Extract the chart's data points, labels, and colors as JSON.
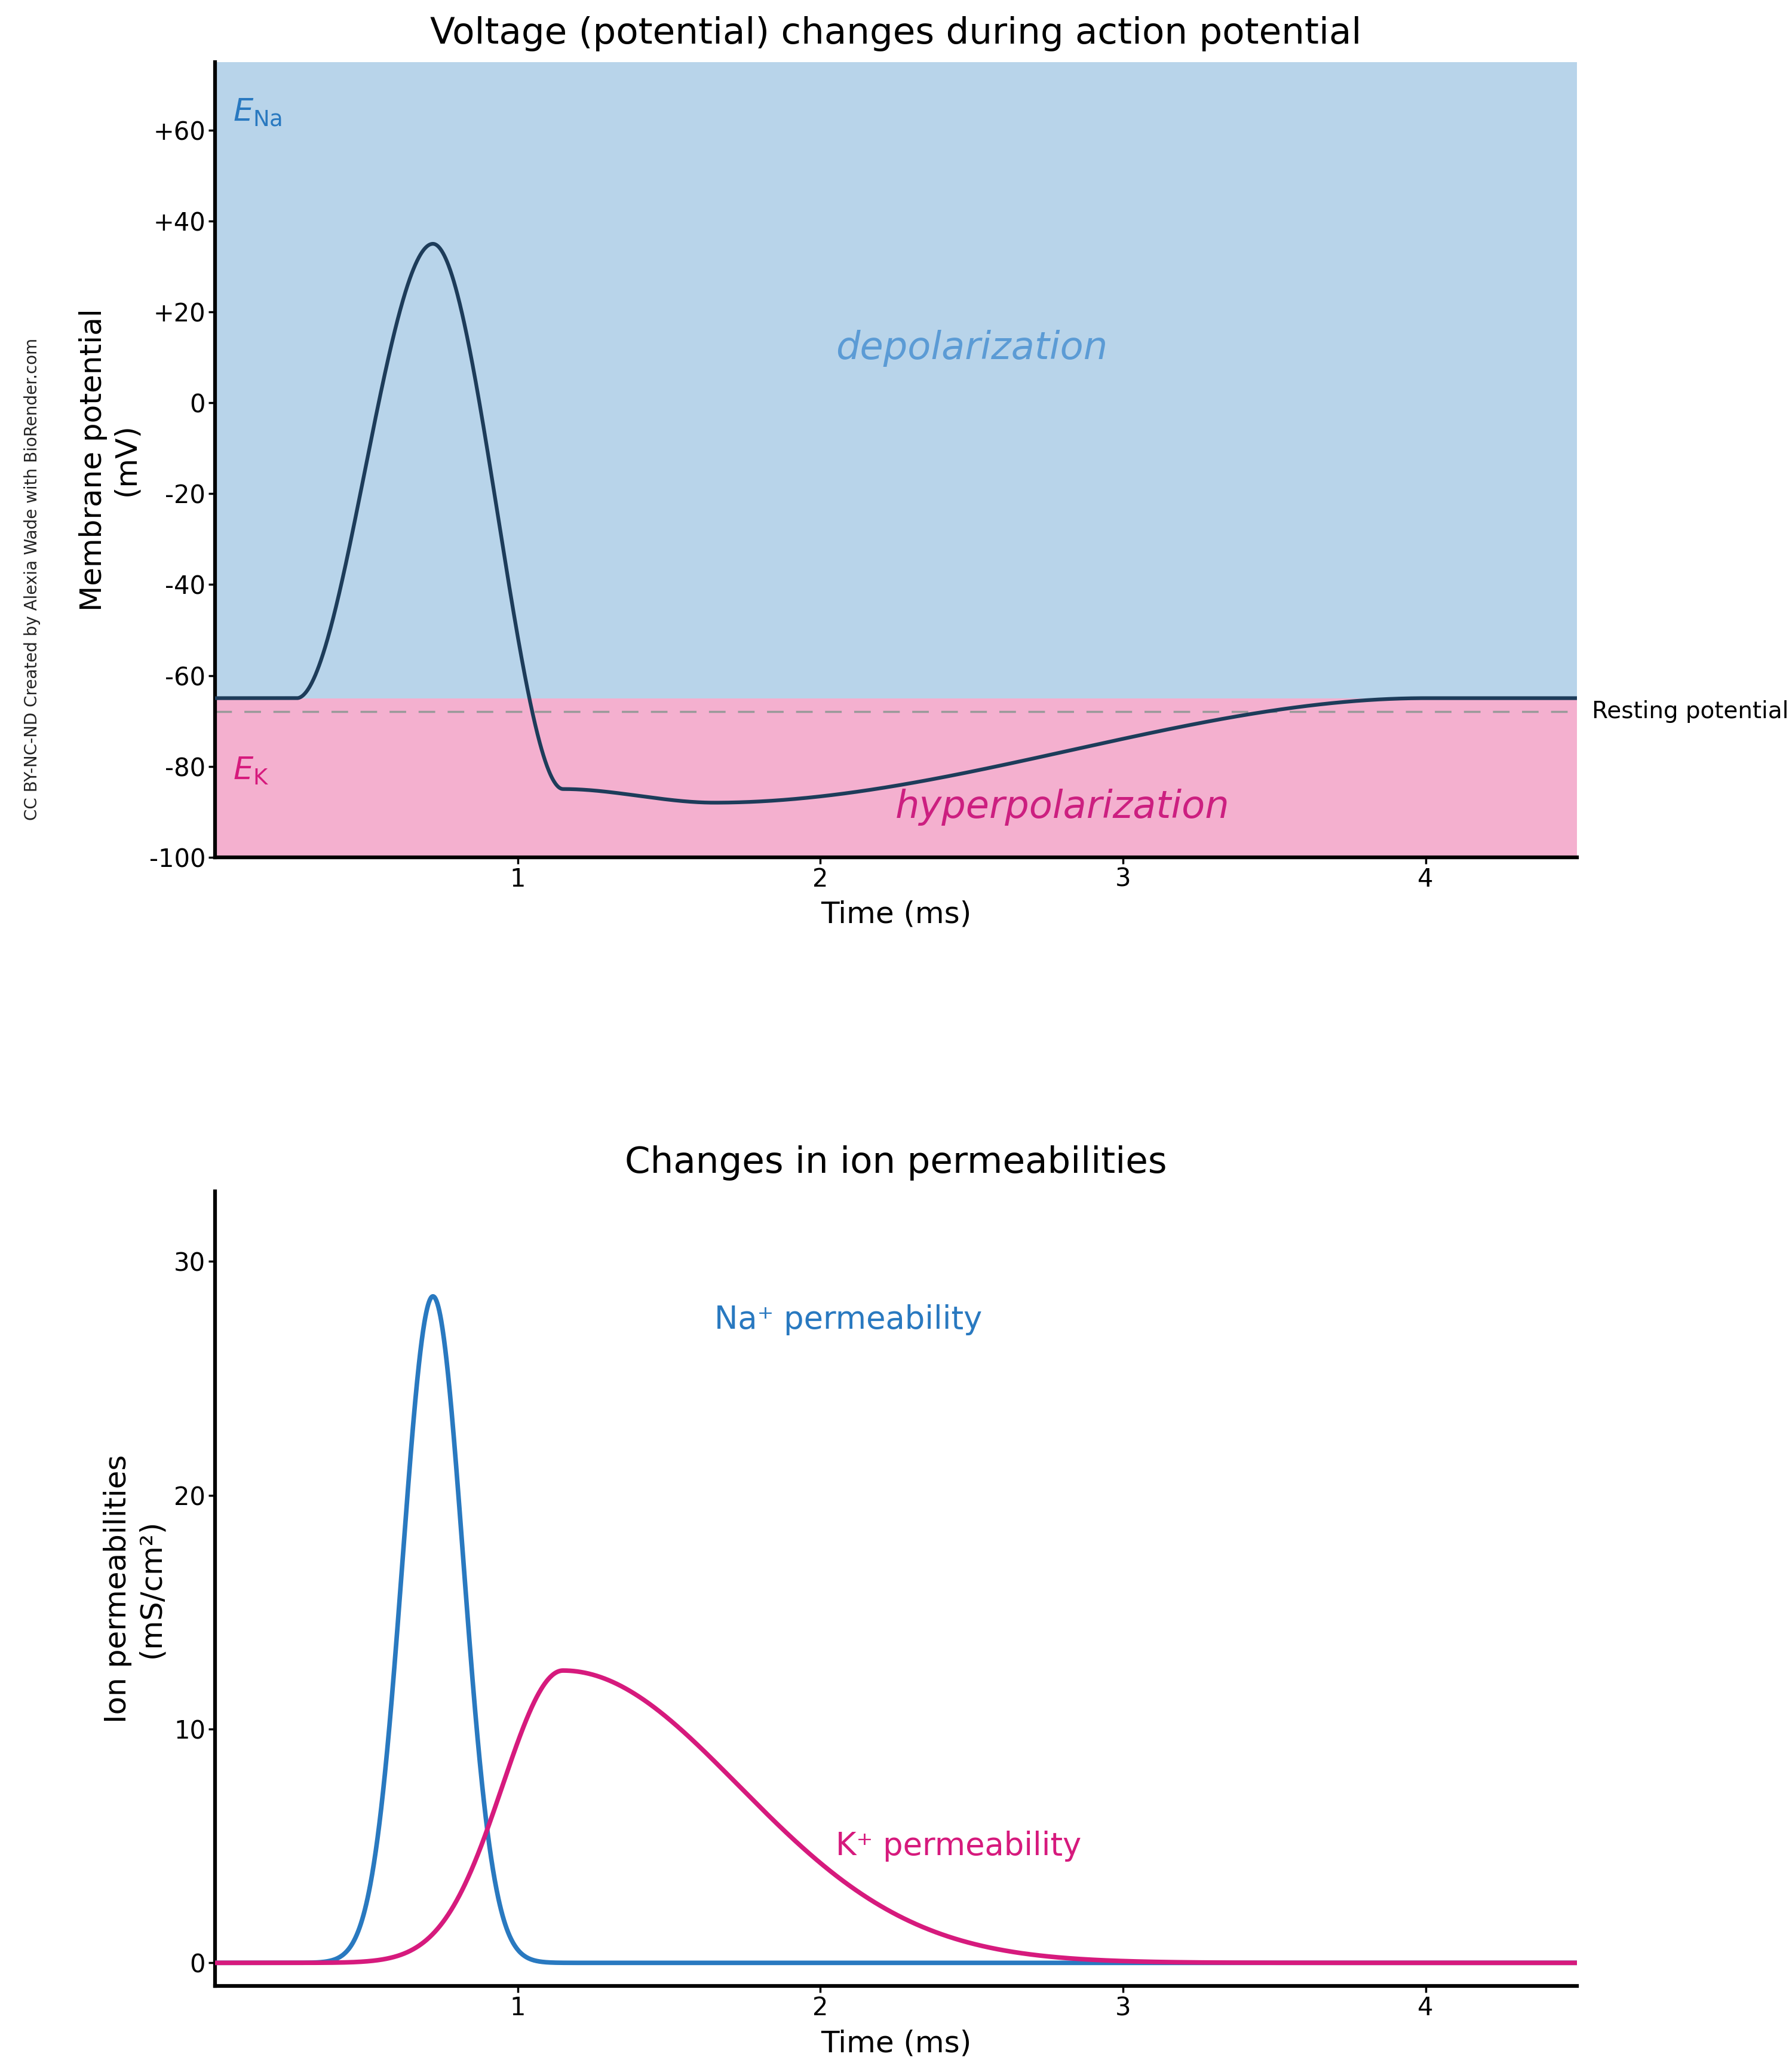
{
  "title1": "Voltage (potential) changes during action potential",
  "title2": "Changes in ion permeabilities",
  "xlabel": "Time (ms)",
  "ylabel1": "Membrane potential\n(mV)",
  "ylabel2": "Ion permeabilities\n(mS/cm²)",
  "ylim1": [
    -100,
    75
  ],
  "ylim2": [
    -1,
    33
  ],
  "xlim": [
    0,
    4.5
  ],
  "yticks1": [
    -100,
    -80,
    -60,
    -40,
    -20,
    0,
    20,
    40,
    60
  ],
  "ytick_labels1": [
    "-100",
    "-80",
    "-60",
    "-40",
    "-20",
    "0",
    "+20",
    "+40",
    "+60"
  ],
  "yticks2": [
    0,
    10,
    20,
    30
  ],
  "xticks": [
    1,
    2,
    3,
    4
  ],
  "resting_potential": -65,
  "resting_line_y": -68,
  "E_Na_y": 63,
  "E_K_y": -82,
  "depolarization_label": "depolarization",
  "hyperpolarization_label": "hyperpolarization",
  "resting_label": "Resting potential",
  "Na_label": "Na⁺ permeability",
  "K_label": "K⁺ permeability",
  "bg_color": "#ffffff",
  "blue_fill": "#b8d4ea",
  "pink_fill": "#f4b0cf",
  "action_potential_color": "#1d3c5a",
  "Na_perm_color": "#2979c0",
  "K_perm_color": "#d61a7d",
  "depolarization_text_color": "#5b9bd5",
  "hyperpolarization_text_color": "#cc1f80",
  "E_Na_color": "#2979c0",
  "E_K_color": "#d61a7d",
  "resting_line_color": "#999999",
  "watermark": "CC BY-NC-ND Created by Alexia Wade with BioRender.com",
  "watermark_color": "#222222",
  "ap_peak": 35,
  "ap_start_t": 0.27,
  "ap_peak_t": 0.72,
  "ap_fall_end_t": 1.15,
  "ap_hyper_min": -85,
  "ap_hyper_t": 1.65,
  "ap_return_t": 4.0,
  "na_peak": 28.5,
  "na_peak_t": 0.72,
  "na_sigma_l": 0.1,
  "na_sigma_r": 0.1,
  "k_peak": 12.5,
  "k_peak_t": 1.15,
  "k_sigma_l": 0.2,
  "k_sigma_r": 0.58
}
